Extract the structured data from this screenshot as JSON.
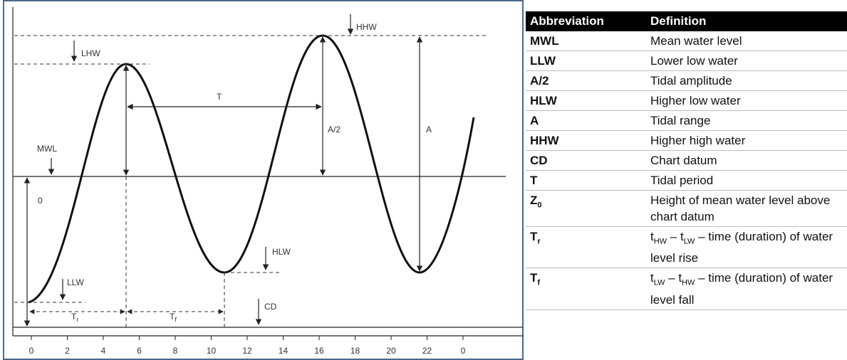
{
  "diagram": {
    "labels": {
      "hhw": "HHW",
      "lhw": "LHW",
      "t": "T",
      "half_a": "A/2",
      "a": "A",
      "mwl": "MWL",
      "zero": "0",
      "llw": "LLW",
      "tr": "T",
      "tr_sub": "r",
      "tf": "T",
      "tf_sub": "f",
      "hlw": "HLW",
      "cd": "CD"
    },
    "x_ticks": [
      "0",
      "2",
      "4",
      "6",
      "8",
      "10",
      "12",
      "14",
      "16",
      "18",
      "20",
      "22",
      "0"
    ]
  },
  "table": {
    "header": [
      "Abbreviation",
      "Definition"
    ],
    "rows": [
      {
        "abbr": "MWL",
        "definition": "Mean water level"
      },
      {
        "abbr": "LLW",
        "definition": "Lower low water"
      },
      {
        "abbr": "A/2",
        "definition": "Tidal amplitude"
      },
      {
        "abbr": "HLW",
        "definition": "Higher low water"
      },
      {
        "abbr": "A",
        "definition": "Tidal range"
      },
      {
        "abbr": "HHW",
        "definition": "Higher high water"
      },
      {
        "abbr": "CD",
        "definition": "Chart datum"
      },
      {
        "abbr": "T",
        "definition": "Tidal period"
      },
      {
        "abbr": [
          "Z",
          {
            "sub": "0"
          }
        ],
        "definition": "Height of mean water level above chart datum"
      },
      {
        "abbr": [
          "T",
          {
            "sub": "r"
          }
        ],
        "definition": [
          "t",
          {
            "sub": "HW"
          },
          " – t",
          {
            "sub": "LW"
          },
          " – time (duration) of water level rise"
        ]
      },
      {
        "abbr": [
          "T",
          {
            "sub": "f"
          }
        ],
        "definition": [
          "t",
          {
            "sub": "LW"
          },
          " – t",
          {
            "sub": "HW"
          },
          " – time (duration) of water level fall"
        ]
      }
    ]
  }
}
